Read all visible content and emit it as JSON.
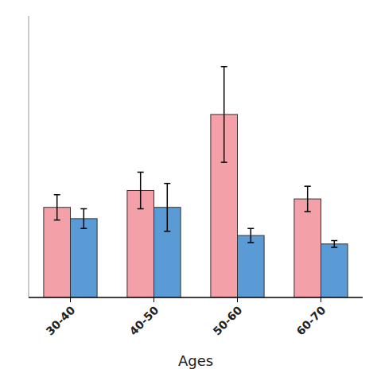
{
  "chart_data": {
    "type": "bar",
    "x_label": "Ages",
    "categories": [
      "30-40",
      "40-50",
      "50-60",
      "60-70"
    ],
    "series": [
      {
        "color": "#F4A0A8",
        "values": [
          3.2,
          3.8,
          6.5,
          3.5
        ],
        "errors": [
          0.45,
          0.65,
          1.7,
          0.45
        ]
      },
      {
        "color": "#5B9BD5",
        "values": [
          2.8,
          3.2,
          2.2,
          1.9
        ],
        "errors": [
          0.35,
          0.85,
          0.25,
          0.12
        ]
      }
    ],
    "ylim": [
      0,
      10
    ],
    "tick_labels": "x",
    "grid": false
  }
}
